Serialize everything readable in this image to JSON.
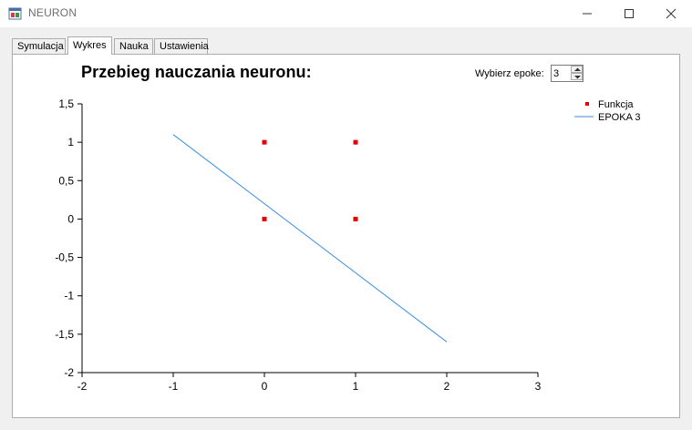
{
  "window": {
    "title": "NEURON",
    "controls": [
      "minimize-icon",
      "maximize-icon",
      "close-icon"
    ]
  },
  "tabs": [
    {
      "label": "Symulacja",
      "active": false
    },
    {
      "label": "Wykres",
      "active": true
    },
    {
      "label": "Nauka",
      "active": false
    },
    {
      "label": "Ustawienia",
      "active": false
    }
  ],
  "page": {
    "title": "Przebieg nauczania neuronu:",
    "epoch_label": "Wybierz epoke:",
    "epoch_value": "3"
  },
  "colors": {
    "points": "#e60000",
    "line": "#3b8ee6",
    "axes": "#000000"
  },
  "chart_data": {
    "type": "scatter",
    "xlim": [
      -2,
      3
    ],
    "ylim": [
      -2,
      1.5
    ],
    "x_ticks": [
      "-2",
      "-1",
      "0",
      "1",
      "2",
      "3"
    ],
    "y_ticks": [
      "1,5",
      "1",
      "0,5",
      "0",
      "-0,5",
      "-1",
      "-1,5",
      "-2"
    ],
    "grid": false,
    "legend_position": "top-right",
    "series": [
      {
        "name": "Funkcja",
        "kind": "scatter",
        "points": [
          [
            0,
            1
          ],
          [
            1,
            1
          ],
          [
            0,
            0
          ],
          [
            1,
            0
          ]
        ]
      },
      {
        "name": "EPOKA 3",
        "kind": "line",
        "points": [
          [
            -1,
            1.1
          ],
          [
            2,
            -1.6
          ]
        ]
      }
    ]
  }
}
